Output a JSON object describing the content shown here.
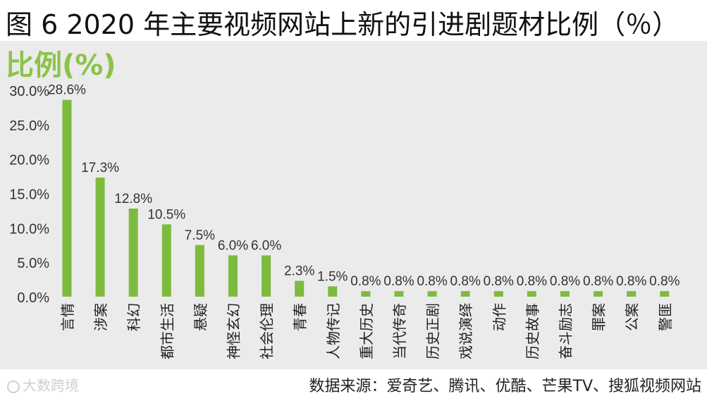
{
  "header": {
    "title": "图 6 2020 年主要视频网站上新的引进剧题材比例（％）"
  },
  "footer": {
    "source": "数据来源：爱奇艺、腾讯、优酷、芒果TV、搜狐视频网站",
    "watermark": "大数跨境"
  },
  "colors": {
    "bar": "#7dbb3e",
    "background": "#ebebeb",
    "ylabel": "#8bc34a"
  },
  "chart_data": {
    "type": "bar",
    "title": "",
    "ylabel": "比例(%)",
    "xlabel": "",
    "ylim": [
      0,
      30
    ],
    "yticks": [
      0,
      5,
      10,
      15,
      20,
      25,
      30
    ],
    "ytick_labels": [
      "0.0%",
      "5.0%",
      "10.0%",
      "15.0%",
      "20.0%",
      "25.0%",
      "30.0%"
    ],
    "grid": false,
    "categories": [
      "言情",
      "涉案",
      "科幻",
      "都市生活",
      "悬疑",
      "神怪玄幻",
      "社会伦理",
      "青春",
      "人物传记",
      "重大历史",
      "当代传奇",
      "历史正剧",
      "戏说演绎",
      "动作",
      "历史故事",
      "奋斗励志",
      "罪案",
      "公案",
      "警匪"
    ],
    "values": [
      28.6,
      17.3,
      12.8,
      10.5,
      7.5,
      6.0,
      6.0,
      2.3,
      1.5,
      0.8,
      0.8,
      0.8,
      0.8,
      0.8,
      0.8,
      0.8,
      0.8,
      0.8,
      0.8
    ],
    "value_labels": [
      "28.6%",
      "17.3%",
      "12.8%",
      "10.5%",
      "7.5%",
      "6.0%",
      "6.0%",
      "2.3%",
      "1.5%",
      "0.8%",
      "0.8%",
      "0.8%",
      "0.8%",
      "0.8%",
      "0.8%",
      "0.8%",
      "0.8%",
      "0.8%",
      "0.8%"
    ]
  }
}
